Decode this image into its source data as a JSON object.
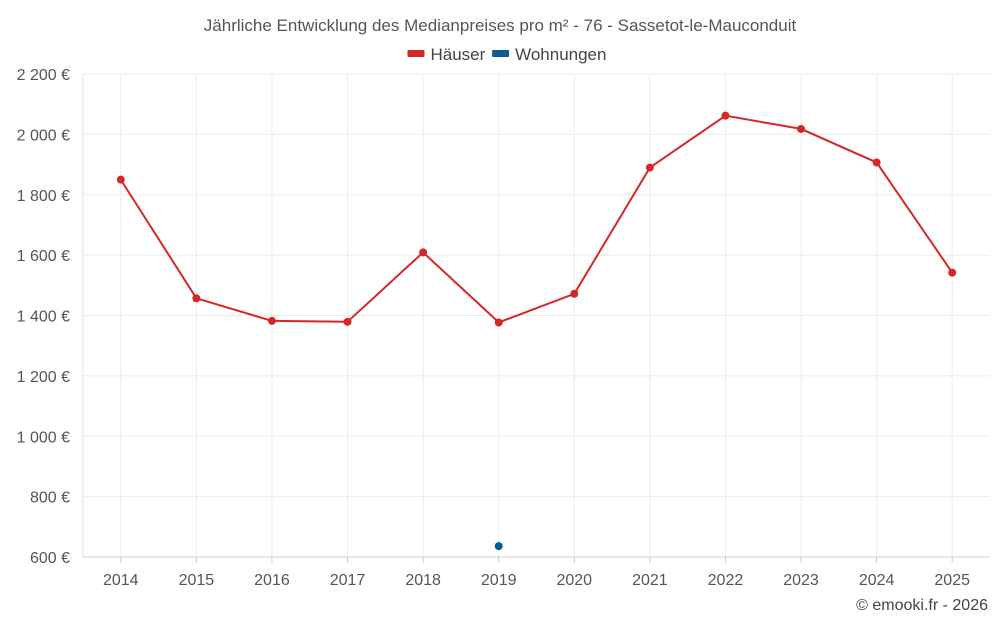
{
  "chart_data": {
    "type": "line",
    "title": "Jährliche Entwicklung des Medianpreises pro m² - 76 - Sassetot-le-Mauconduit",
    "categories": [
      "2014",
      "2015",
      "2016",
      "2017",
      "2018",
      "2019",
      "2020",
      "2021",
      "2022",
      "2023",
      "2024",
      "2025"
    ],
    "series": [
      {
        "name": "Häuser",
        "color": "#d62728",
        "values": [
          1850,
          1457,
          1382,
          1379,
          1609,
          1377,
          1472,
          1890,
          2062,
          2018,
          1907,
          1542
        ]
      },
      {
        "name": "Wohnungen",
        "color": "#0b5c94",
        "values": [
          null,
          null,
          null,
          null,
          null,
          636,
          null,
          null,
          null,
          null,
          null,
          null
        ]
      }
    ],
    "ylim": [
      600,
      2200
    ],
    "yticks": [
      600,
      800,
      1000,
      1200,
      1400,
      1600,
      1800,
      2000,
      2200
    ],
    "ytick_labels": [
      "600 €",
      "800 €",
      "1 000 €",
      "1 200 €",
      "1 400 €",
      "1 600 €",
      "1 800 €",
      "2 000 €",
      "2 200 €"
    ],
    "grid": true,
    "legend_position": "top-center"
  },
  "credit": "© emooki.fr - 2026"
}
